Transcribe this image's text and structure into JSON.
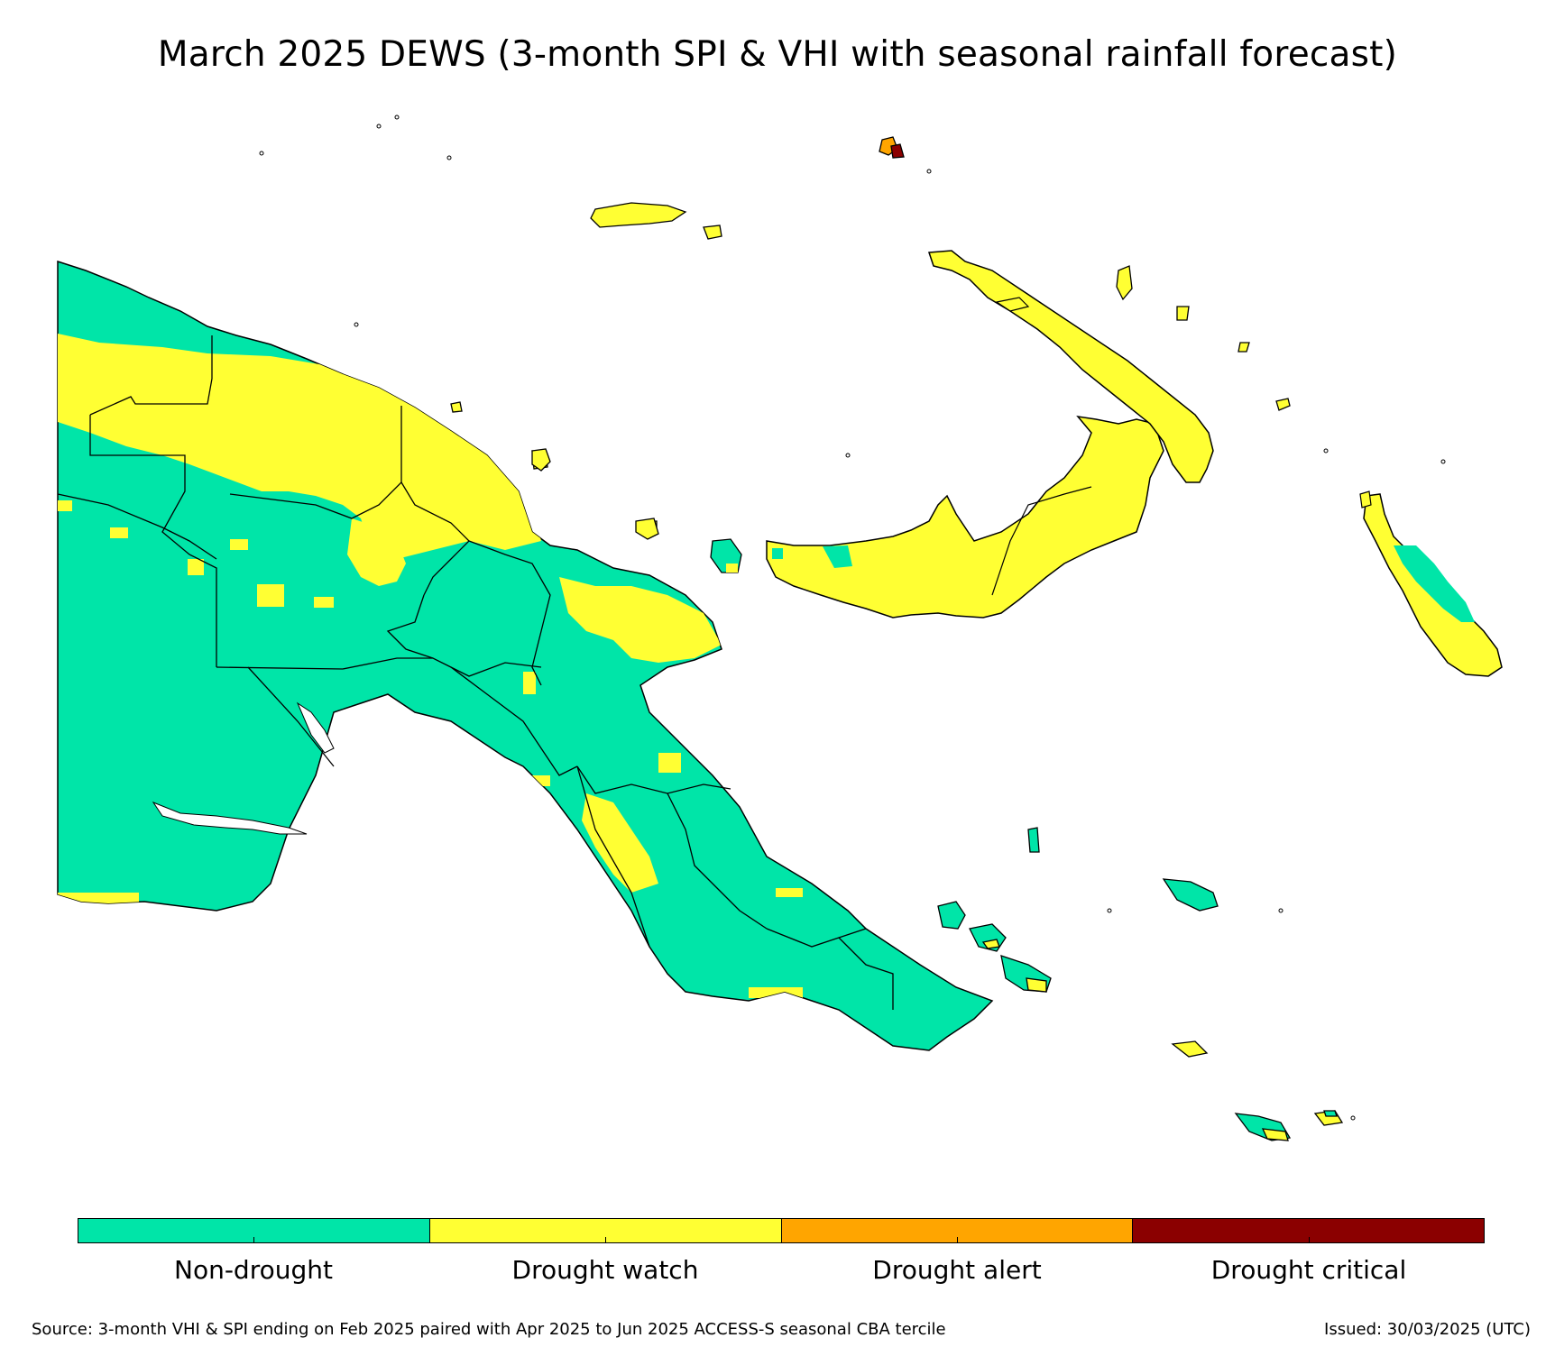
{
  "title": "March 2025 DEWS (3-month SPI & VHI with seasonal rainfall forecast)",
  "legend": {
    "items": [
      {
        "label": "Non-drought",
        "color": "#00e5a8"
      },
      {
        "label": "Drought watch",
        "color": "#ffff33"
      },
      {
        "label": "Drought alert",
        "color": "#ffa500"
      },
      {
        "label": "Drought critical",
        "color": "#8b0000"
      }
    ]
  },
  "footer": {
    "source": "Source: 3-month VHI & SPI ending on Feb 2025 paired with Apr 2025 to Jun 2025 ACCESS-S seasonal CBA tercile",
    "issued": "Issued: 30/03/2025 (UTC)"
  },
  "map": {
    "colors": {
      "non_drought": "#00e5a8",
      "watch": "#ffff33",
      "alert": "#ffa500",
      "critical": "#8b0000",
      "outline": "#000000"
    }
  }
}
